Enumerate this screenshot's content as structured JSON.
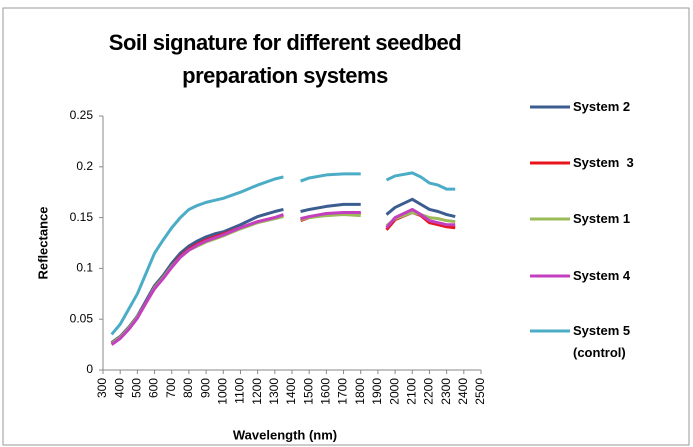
{
  "chart_data": {
    "type": "line",
    "title": "Soil signature for different seedbed preparation systems",
    "x_label": "Wavelength (nm)",
    "y_label": "Reflectance",
    "x": [
      350,
      400,
      450,
      500,
      550,
      600,
      650,
      700,
      750,
      800,
      850,
      900,
      950,
      1000,
      1100,
      1200,
      1300,
      1350,
      1400,
      1450,
      1500,
      1600,
      1700,
      1800,
      1900,
      1950,
      2000,
      2100,
      2150,
      2200,
      2250,
      2300,
      2350
    ],
    "series": [
      {
        "name": "System 2",
        "color": "#3c5d8f",
        "values": [
          0.027,
          0.033,
          0.042,
          0.053,
          0.068,
          0.083,
          0.093,
          0.105,
          0.115,
          0.122,
          0.127,
          0.131,
          0.134,
          0.136,
          0.143,
          0.151,
          0.156,
          0.158,
          null,
          0.156,
          0.158,
          0.161,
          0.163,
          0.163,
          null,
          0.153,
          0.16,
          0.168,
          0.163,
          0.158,
          0.156,
          0.153,
          0.151
        ]
      },
      {
        "name": "System  3",
        "color": "#e8141b",
        "values": [
          0.026,
          0.032,
          0.041,
          0.052,
          0.066,
          0.081,
          0.091,
          0.102,
          0.112,
          0.119,
          0.124,
          0.128,
          0.131,
          0.134,
          0.14,
          0.146,
          0.15,
          0.152,
          null,
          0.147,
          0.15,
          0.153,
          0.154,
          0.154,
          null,
          0.138,
          0.148,
          0.155,
          0.152,
          0.145,
          0.143,
          0.141,
          0.14
        ]
      },
      {
        "name": "System 1",
        "color": "#9bbb59",
        "values": [
          0.026,
          0.032,
          0.041,
          0.052,
          0.066,
          0.081,
          0.091,
          0.102,
          0.111,
          0.118,
          0.122,
          0.126,
          0.129,
          0.132,
          0.139,
          0.145,
          0.149,
          0.151,
          null,
          0.148,
          0.15,
          0.152,
          0.153,
          0.152,
          null,
          0.142,
          0.149,
          0.155,
          0.153,
          0.15,
          0.149,
          0.147,
          0.146
        ]
      },
      {
        "name": "System 4",
        "color": "#c43fc0",
        "values": [
          0.025,
          0.031,
          0.04,
          0.051,
          0.066,
          0.08,
          0.09,
          0.101,
          0.111,
          0.118,
          0.123,
          0.127,
          0.13,
          0.133,
          0.14,
          0.146,
          0.15,
          0.153,
          null,
          0.149,
          0.151,
          0.154,
          0.155,
          0.155,
          null,
          0.14,
          0.15,
          0.158,
          0.153,
          0.147,
          0.145,
          0.143,
          0.143
        ]
      },
      {
        "name": "System 5 (control)",
        "color": "#4bacc6",
        "values": [
          0.035,
          0.045,
          0.06,
          0.075,
          0.095,
          0.115,
          0.128,
          0.14,
          0.15,
          0.158,
          0.162,
          0.165,
          0.167,
          0.169,
          0.175,
          0.182,
          0.188,
          0.19,
          null,
          0.186,
          0.189,
          0.192,
          0.193,
          0.193,
          null,
          0.187,
          0.191,
          0.194,
          0.19,
          0.184,
          0.182,
          0.178,
          0.178
        ]
      }
    ],
    "xlim": [
      300,
      2500
    ],
    "xticks": [
      300,
      400,
      500,
      600,
      700,
      800,
      900,
      1000,
      1100,
      1200,
      1300,
      1400,
      1500,
      1600,
      1700,
      1800,
      1900,
      2000,
      2100,
      2200,
      2300,
      2400,
      2500
    ],
    "ylim": [
      0,
      0.25
    ],
    "yticks": [
      0,
      0.05,
      0.1,
      0.15,
      0.2,
      0.25
    ],
    "grid": false,
    "legend": "right"
  }
}
